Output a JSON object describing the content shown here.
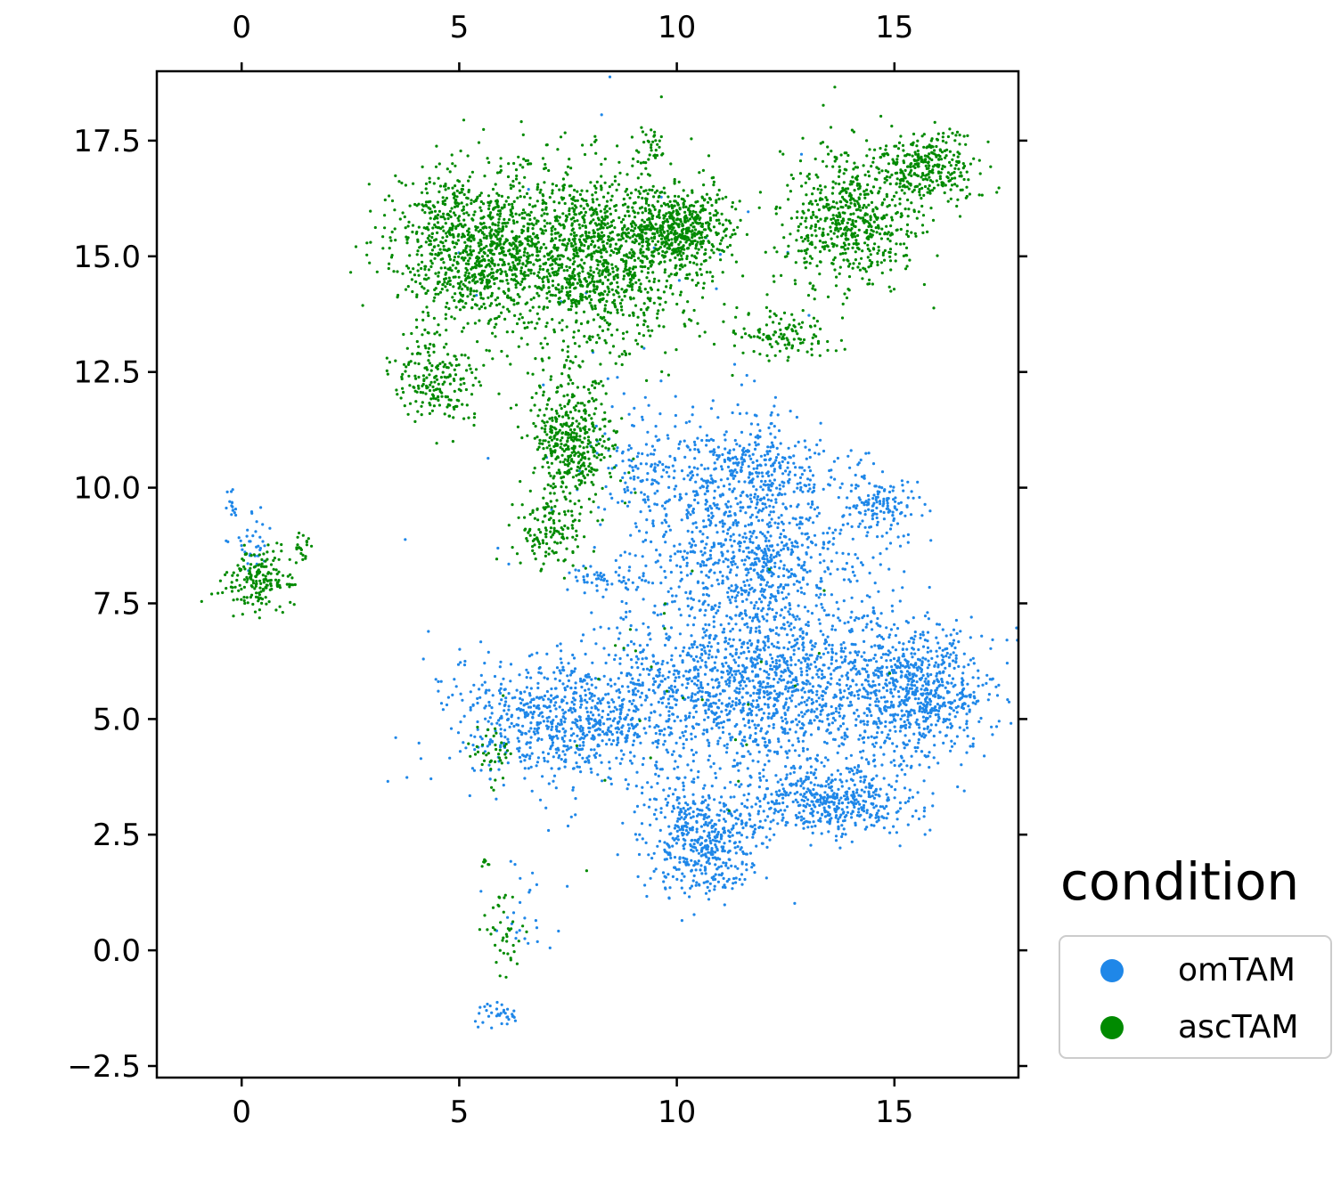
{
  "chart_data": {
    "type": "scatter",
    "xlim": [
      -1.95,
      17.85
    ],
    "ylim": [
      -2.75,
      19.0
    ],
    "x_ticks": [
      0,
      5,
      10,
      15
    ],
    "x_tick_labels": [
      "0",
      "5",
      "10",
      "15"
    ],
    "y_ticks": [
      -2.5,
      0.0,
      2.5,
      5.0,
      7.5,
      10.0,
      12.5,
      15.0,
      17.5
    ],
    "y_tick_labels": [
      "−2.5",
      "0.0",
      "2.5",
      "5.0",
      "7.5",
      "10.0",
      "12.5",
      "15.0",
      "17.5"
    ],
    "ticks_on_all_sides": true,
    "grid": false,
    "legend": {
      "title": "condition",
      "placement": "outside-right-bottom",
      "entries": [
        "omTAM",
        "ascTAM"
      ]
    },
    "series": [
      {
        "name": "omTAM",
        "color": "#1f87e8",
        "clusters": [
          {
            "cx": 11.8,
            "cy": 8.5,
            "sx": 1.8,
            "sy": 1.6,
            "n": 1100
          },
          {
            "cx": 12.0,
            "cy": 5.6,
            "sx": 2.6,
            "sy": 1.2,
            "n": 1400
          },
          {
            "cx": 7.4,
            "cy": 5.0,
            "sx": 1.7,
            "sy": 0.95,
            "n": 750
          },
          {
            "cx": 15.6,
            "cy": 5.6,
            "sx": 1.0,
            "sy": 0.9,
            "n": 600
          },
          {
            "cx": 10.6,
            "cy": 2.4,
            "sx": 0.9,
            "sy": 0.8,
            "n": 500
          },
          {
            "cx": 13.6,
            "cy": 3.2,
            "sx": 1.3,
            "sy": 0.5,
            "n": 450
          },
          {
            "cx": 11.6,
            "cy": 10.5,
            "sx": 1.2,
            "sy": 0.6,
            "n": 250
          },
          {
            "cx": 14.7,
            "cy": 9.6,
            "sx": 0.5,
            "sy": 0.4,
            "n": 120
          },
          {
            "cx": 9.2,
            "cy": 10.5,
            "sx": 0.7,
            "sy": 0.9,
            "n": 120
          },
          {
            "cx": 8.4,
            "cy": 8.0,
            "sx": 0.6,
            "sy": 0.2,
            "n": 50
          },
          {
            "cx": 0.2,
            "cy": 8.8,
            "sx": 0.3,
            "sy": 0.4,
            "n": 35
          },
          {
            "cx": -0.2,
            "cy": 9.6,
            "sx": 0.1,
            "sy": 0.25,
            "n": 15
          },
          {
            "cx": 5.9,
            "cy": -1.4,
            "sx": 0.35,
            "sy": 0.15,
            "n": 35
          },
          {
            "cx": 6.5,
            "cy": 0.8,
            "sx": 0.5,
            "sy": 0.8,
            "n": 25
          },
          {
            "cx": 10.0,
            "cy": 10.0,
            "sx": 4.0,
            "sy": 6.0,
            "n": 60
          }
        ]
      },
      {
        "name": "ascTAM",
        "color": "#008a00",
        "clusters": [
          {
            "cx": 5.3,
            "cy": 15.2,
            "sx": 1.2,
            "sy": 1.1,
            "n": 900
          },
          {
            "cx": 8.0,
            "cy": 15.0,
            "sx": 1.6,
            "sy": 1.3,
            "n": 1300
          },
          {
            "cx": 10.1,
            "cy": 15.6,
            "sx": 0.8,
            "sy": 0.6,
            "n": 500
          },
          {
            "cx": 4.5,
            "cy": 12.3,
            "sx": 0.7,
            "sy": 0.6,
            "n": 200
          },
          {
            "cx": 7.6,
            "cy": 11.0,
            "sx": 0.6,
            "sy": 1.0,
            "n": 450
          },
          {
            "cx": 7.0,
            "cy": 9.0,
            "sx": 0.5,
            "sy": 0.5,
            "n": 120
          },
          {
            "cx": 9.4,
            "cy": 17.4,
            "sx": 0.25,
            "sy": 0.3,
            "n": 30
          },
          {
            "cx": 14.0,
            "cy": 15.8,
            "sx": 1.0,
            "sy": 1.0,
            "n": 600
          },
          {
            "cx": 15.8,
            "cy": 16.9,
            "sx": 0.7,
            "sy": 0.5,
            "n": 300
          },
          {
            "cx": 12.4,
            "cy": 13.3,
            "sx": 0.8,
            "sy": 0.35,
            "n": 120
          },
          {
            "cx": 0.4,
            "cy": 8.0,
            "sx": 0.6,
            "sy": 0.45,
            "n": 180
          },
          {
            "cx": 1.4,
            "cy": 8.8,
            "sx": 0.15,
            "sy": 0.2,
            "n": 20
          },
          {
            "cx": 6.0,
            "cy": 0.3,
            "sx": 0.35,
            "sy": 0.8,
            "n": 40
          },
          {
            "cx": 5.6,
            "cy": 1.9,
            "sx": 0.1,
            "sy": 0.05,
            "n": 8
          },
          {
            "cx": 5.8,
            "cy": 4.3,
            "sx": 0.35,
            "sy": 0.5,
            "n": 40
          },
          {
            "cx": 11.0,
            "cy": 6.5,
            "sx": 3.0,
            "sy": 2.5,
            "n": 30
          }
        ]
      }
    ]
  }
}
